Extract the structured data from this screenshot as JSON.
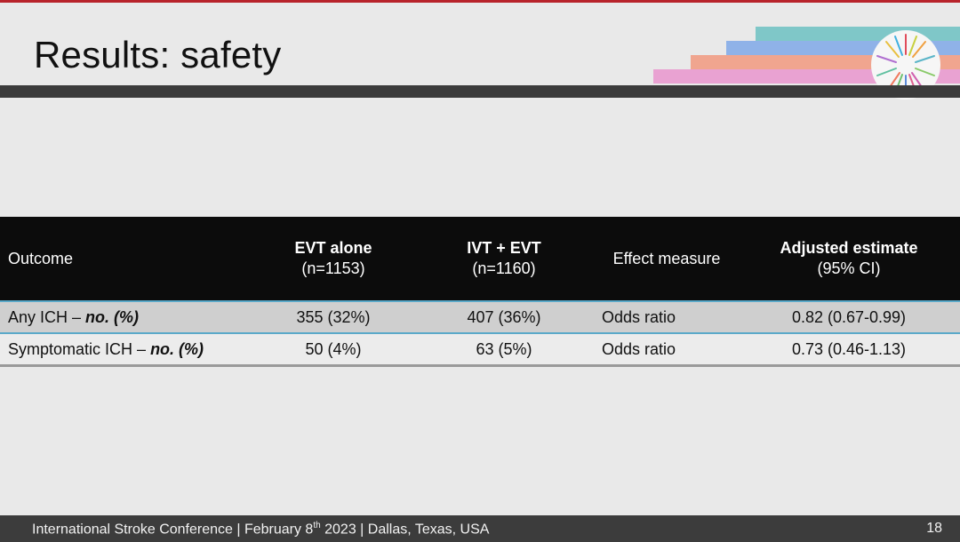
{
  "slide": {
    "title": "Results: safety",
    "page_number": "18"
  },
  "footer": {
    "pre": "International Stroke Conference | February 8",
    "sup": "th",
    "post": " 2023 | Dallas, Texas, USA"
  },
  "table": {
    "headers": [
      {
        "main": "Outcome",
        "sub": ""
      },
      {
        "main": "EVT alone",
        "sub": "(n=1153)"
      },
      {
        "main": "IVT + EVT",
        "sub": "(n=1160)"
      },
      {
        "main": "Effect measure",
        "sub": ""
      },
      {
        "main": "Adjusted estimate",
        "sub": "(95% CI)"
      }
    ],
    "rows": [
      {
        "outcome": "Any ICH –",
        "outcome_unit": "no. (%)",
        "evt": "355 (32%)",
        "ivt_evt": "407 (36%)",
        "measure": "Odds ratio",
        "estimate": "0.82 (0.67-0.99)"
      },
      {
        "outcome": "Symptomatic ICH –",
        "outcome_unit": "no. (%)",
        "evt": "50 (4%)",
        "ivt_evt": "63 (5%)",
        "measure": "Odds ratio",
        "estimate": "0.73 (0.46-1.13)"
      }
    ]
  },
  "colors": {
    "accent_red": "#b8242b",
    "header_bg": "#0c0c0c",
    "row_highlight": "#5aa9c9"
  }
}
